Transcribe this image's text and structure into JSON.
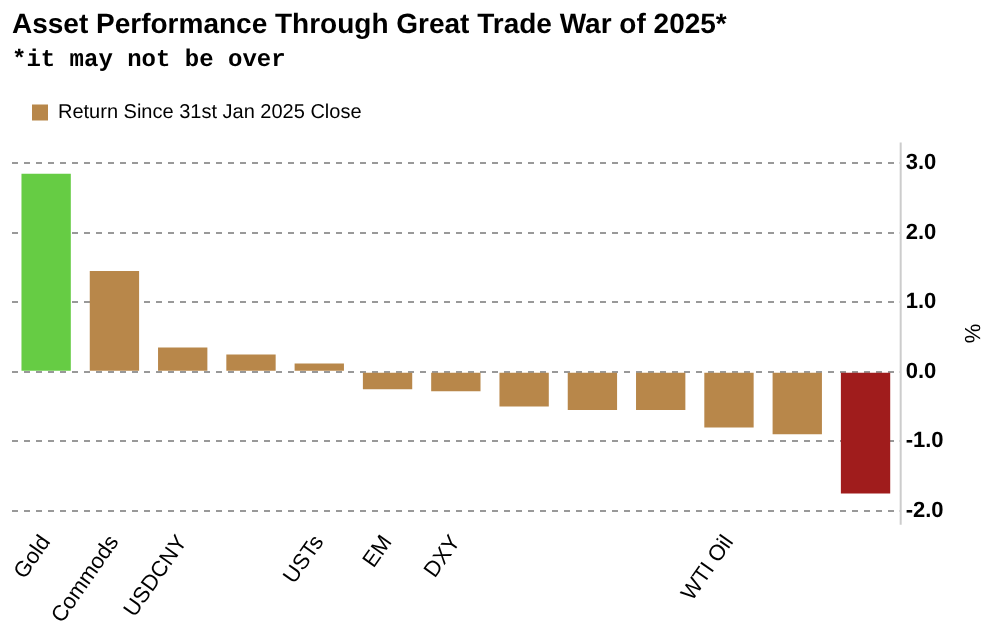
{
  "chart_data": {
    "type": "bar",
    "title": "Asset Performance Through Great Trade War of 2025*",
    "subtitle": "*it may not be over",
    "ylabel": "%",
    "categories": [
      "Gold",
      "Commods",
      "USDCNY",
      null,
      "USTs",
      "EM",
      "DXY",
      null,
      null,
      null,
      "WTI Oil",
      null,
      null
    ],
    "series": [
      {
        "name": "Return Since 31st Jan 2025 Close",
        "color": "#b8874a",
        "colors": [
          "#66cc44",
          "#b8874a",
          "#b8874a",
          "#b8874a",
          "#b8874a",
          "#b8874a",
          "#b8874a",
          "#b8874a",
          "#b8874a",
          "#b8874a",
          "#b8874a",
          "#b8874a",
          "#a01c1c"
        ],
        "values": [
          2.85,
          1.45,
          0.35,
          0.25,
          0.12,
          -0.25,
          -0.28,
          -0.5,
          -0.55,
          -0.55,
          -0.8,
          -0.9,
          -1.75
        ]
      }
    ],
    "ylim": [
      -2.2,
      3.3
    ],
    "yticks": [
      {
        "value": -2,
        "label": "-2.0"
      },
      {
        "value": -1,
        "label": "-1.0"
      },
      {
        "value": 0,
        "label": "0.0"
      },
      {
        "value": 1,
        "label": "1.0"
      },
      {
        "value": 2,
        "label": "2.0"
      },
      {
        "value": 3,
        "label": "3.0"
      }
    ],
    "grid": "y",
    "legend": "top left"
  }
}
